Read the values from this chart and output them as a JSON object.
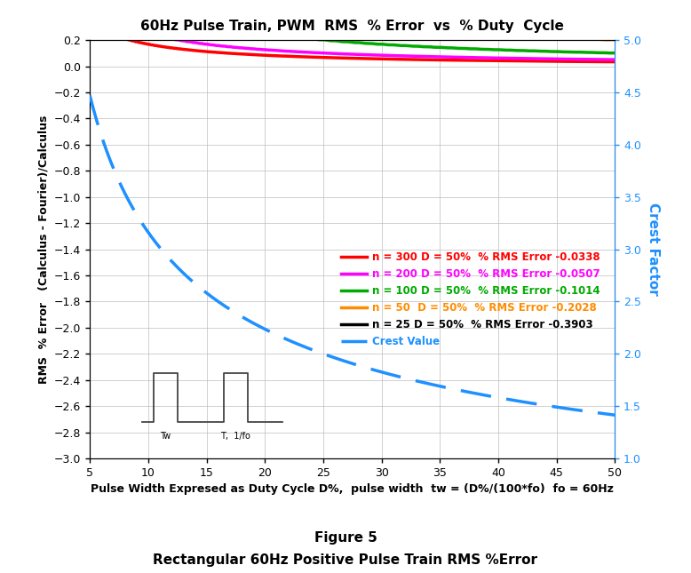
{
  "title": "60Hz Pulse Train, PWM  RMS  % Error  vs  % Duty  Cycle",
  "xlabel": "Pulse Width Expresed as Duty Cycle D%,  pulse width  tw = (D%/(100*fo)  fo = 60Hz",
  "ylabel_left": "RMS  % Error   (Calculus - Fourier)/Calculus",
  "ylabel_right": "Crest Factor",
  "figure_title": "Figure 5",
  "figure_subtitle": "Rectangular 60Hz Positive Pulse Train RMS %Error",
  "xlim": [
    5,
    50
  ],
  "ylim_left": [
    -3.0,
    0.2
  ],
  "ylim_right": [
    1.0,
    5.0
  ],
  "xticks": [
    5,
    10,
    15,
    20,
    25,
    30,
    35,
    40,
    45,
    50
  ],
  "yticks_left": [
    -3.0,
    -2.8,
    -2.6,
    -2.4,
    -2.2,
    -2.0,
    -1.8,
    -1.6,
    -1.4,
    -1.2,
    -1.0,
    -0.8,
    -0.6,
    -0.4,
    -0.2,
    0.0,
    0.2
  ],
  "yticks_right": [
    1.0,
    1.5,
    2.0,
    2.5,
    3.0,
    3.5,
    4.0,
    4.5,
    5.0
  ],
  "series": [
    {
      "n": 300,
      "color": "#FF0000",
      "label": "n = 300 D = 50%  % RMS Error -0.0338"
    },
    {
      "n": 200,
      "color": "#FF00FF",
      "label": "n = 200 D = 50%  % RMS Error -0.0507"
    },
    {
      "n": 100,
      "color": "#00AA00",
      "label": "n = 100 D = 50%  % RMS Error -0.1014"
    },
    {
      "n": 50,
      "color": "#FF8C00",
      "label": "n = 50  D = 50%  % RMS Error -0.2028"
    },
    {
      "n": 25,
      "color": "#000000",
      "label": "n = 25 D = 50%  % RMS Error -0.3903"
    }
  ],
  "crest_label": "Crest Value",
  "crest_color": "#1E90FF",
  "background_color": "#FFFFFF",
  "grid_color": "#BBBBBB",
  "pulse_diagram_x": [
    9.5,
    10.5,
    10.5,
    12.5,
    12.5,
    14.0,
    16.5,
    16.5,
    18.5,
    18.5,
    21.5
  ],
  "pulse_diagram_y": [
    -2.72,
    -2.72,
    -2.35,
    -2.35,
    -2.72,
    -2.72,
    -2.72,
    -2.35,
    -2.35,
    -2.72,
    -2.72
  ],
  "pulse_tw_x": 11.5,
  "pulse_tw_y": -2.85,
  "pulse_t_x": 17.5,
  "pulse_t_y": -2.85
}
